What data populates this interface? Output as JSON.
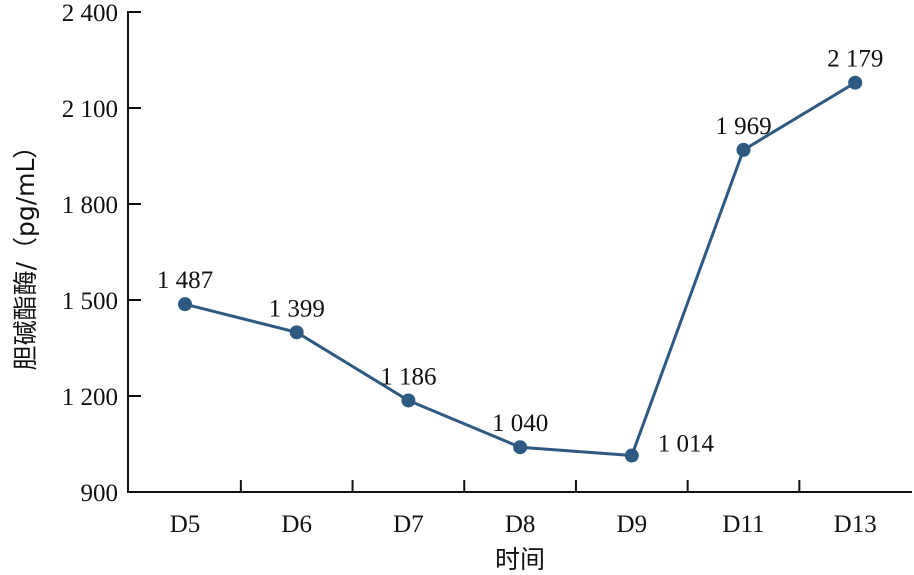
{
  "chart_data": {
    "type": "line",
    "title": "",
    "xlabel": "时间",
    "ylabel": "胆碱酯酶/（pg/mL）",
    "categories": [
      "D5",
      "D6",
      "D7",
      "D8",
      "D9",
      "D11",
      "D13"
    ],
    "series": [
      {
        "values": [
          1487,
          1399,
          1186,
          1040,
          1014,
          1969,
          2179
        ]
      }
    ],
    "data_labels": [
      "1 487",
      "1 399",
      "1 186",
      "1 040",
      "1 014",
      "1 969",
      "2 179"
    ],
    "yticks": [
      900,
      1200,
      1500,
      1800,
      2100,
      2400
    ],
    "ytick_labels": [
      "900",
      "1 200",
      "1 500",
      "1 800",
      "2 100",
      "2 400"
    ],
    "ylim": [
      900,
      2400
    ],
    "grid": false,
    "colors": {
      "series": "#2e5a82",
      "axis": "#111111"
    }
  }
}
